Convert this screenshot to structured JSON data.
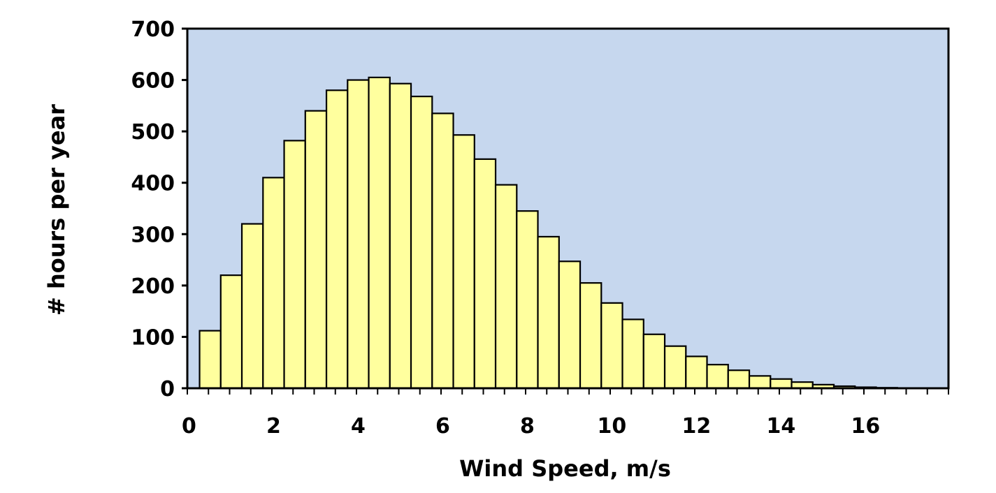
{
  "chart_data": {
    "type": "bar",
    "xlabel": "Wind Speed, m/s",
    "ylabel": "# hours per year",
    "ylim": [
      0,
      700
    ],
    "xlim": [
      0,
      18
    ],
    "yticks": [
      "0",
      "100",
      "200",
      "300",
      "400",
      "500",
      "600",
      "700"
    ],
    "xticks": [
      "0",
      "2",
      "4",
      "6",
      "8",
      "10",
      "12",
      "14",
      "16"
    ],
    "bin_width": 0.5,
    "bin_centers": [
      0.5,
      1.0,
      1.5,
      2.0,
      2.5,
      3.0,
      3.5,
      4.0,
      4.5,
      5.0,
      5.5,
      6.0,
      6.5,
      7.0,
      7.5,
      8.0,
      8.5,
      9.0,
      9.5,
      10.0,
      10.5,
      11.0,
      11.5,
      12.0,
      12.5,
      13.0,
      13.5,
      14.0,
      14.5,
      15.0,
      15.5,
      16.0,
      16.5,
      17.0,
      17.5
    ],
    "values": [
      112,
      220,
      320,
      410,
      482,
      540,
      580,
      600,
      605,
      593,
      568,
      535,
      493,
      446,
      396,
      345,
      295,
      247,
      205,
      166,
      134,
      105,
      82,
      62,
      46,
      35,
      24,
      18,
      12,
      7,
      4,
      2,
      1,
      0.5,
      0.2
    ],
    "grid": false,
    "legend": "none",
    "colors": {
      "plot_background": "#c6d7ee",
      "bar_fill": "#ffff9e",
      "bar_edge": "#000000",
      "axis": "#000000",
      "page_background": "#ffffff"
    }
  }
}
